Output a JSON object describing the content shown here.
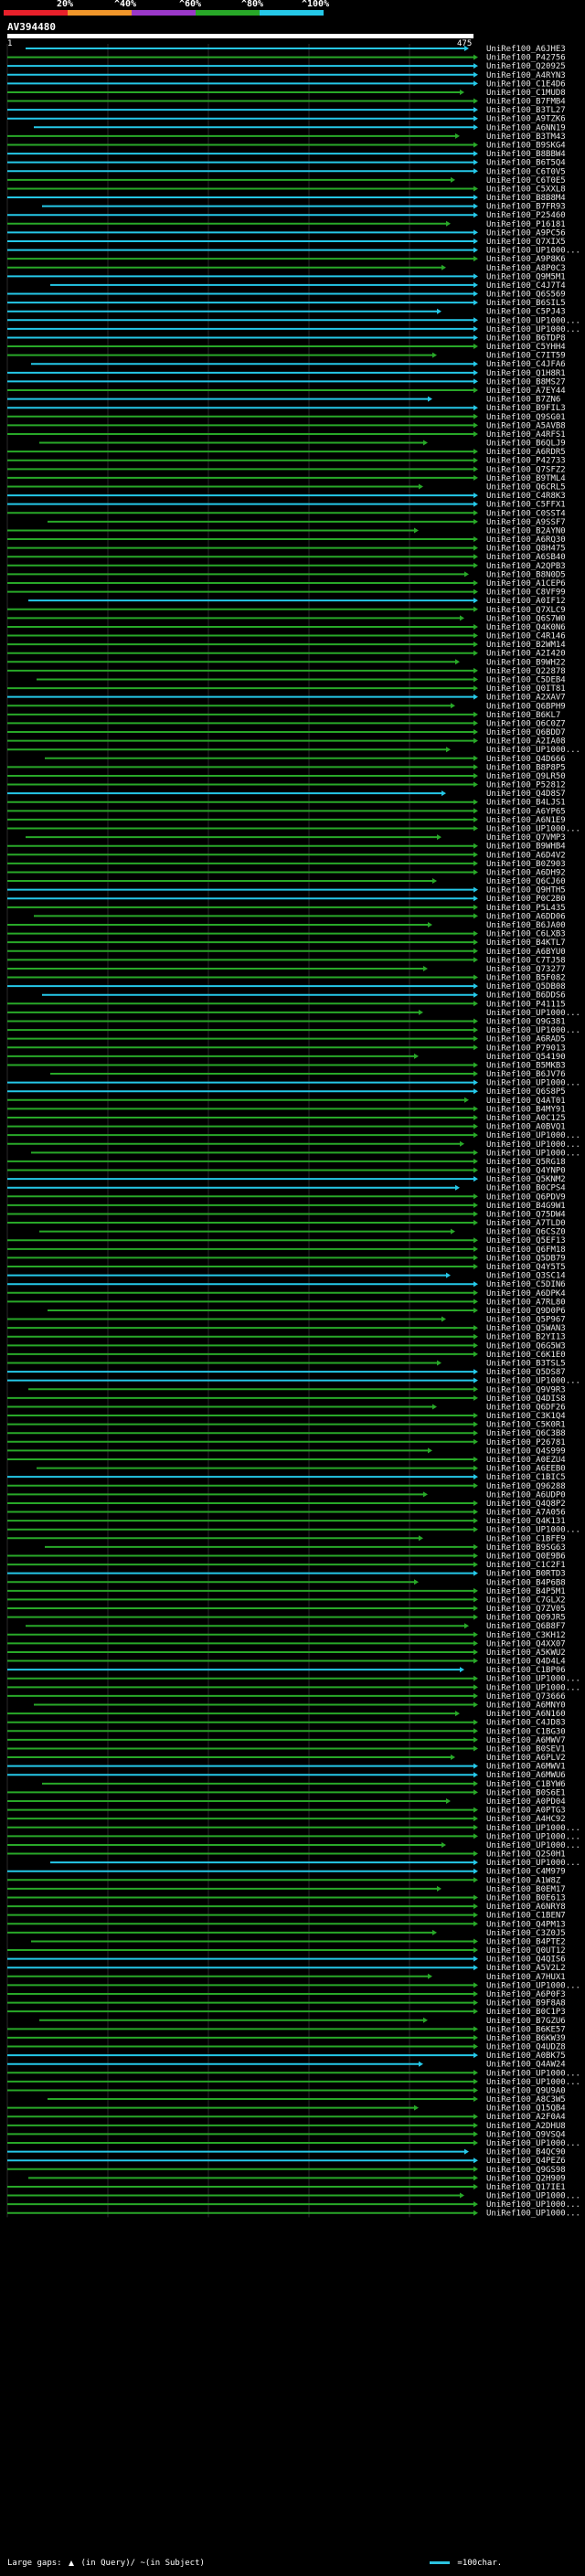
{
  "scale": {
    "labels": [
      "20%",
      "^40%",
      "^60%",
      "^80%",
      "^100%"
    ],
    "colors": [
      "#e8202a",
      "#f0962a",
      "#9a38c8",
      "#28a828",
      "#25c8e8"
    ]
  },
  "query": {
    "id": "AV394480",
    "start": "1",
    "end": "475"
  },
  "legend": {
    "left_prefix": "Large gaps:",
    "in_query": "(in Query)/",
    "in_subject": "~(in Subject)",
    "right_text": "=100char."
  },
  "hits": [
    "UniRef100_A6JHE3",
    "UniRef100_P42756",
    "UniRef100_Q20925",
    "UniRef100_A4RYN3",
    "UniRef100_C1E4D6",
    "UniRef100_C1MUD8",
    "UniRef100_B7FMB4",
    "UniRef100_B3TL27",
    "UniRef100_A9TZK6",
    "UniRef100_A6NN19",
    "UniRef100_B3TM43",
    "UniRef100_B9SKG4",
    "UniRef100_B8BBW4",
    "UniRef100_B6T5Q4",
    "UniRef100_C6T0V5",
    "UniRef100_C6T0E5",
    "UniRef100_C5XXL8",
    "UniRef100_B8B8M4",
    "UniRef100_B7FR93",
    "UniRef100_P25460",
    "UniRef100_P16181",
    "UniRef100_A9PC56",
    "UniRef100_Q7XIX5",
    "UniRef100_UP1000...",
    "UniRef100_A9P8K6",
    "UniRef100_A8P0C3",
    "UniRef100_Q9M5M1",
    "UniRef100_C4J7T4",
    "UniRef100_Q6S569",
    "UniRef100_B6SIL5",
    "UniRef100_C5PJ43",
    "UniRef100_UP1000...",
    "UniRef100_UP1000...",
    "UniRef100_B6TDP8",
    "UniRef100_C5YHH4",
    "UniRef100_C7IT59",
    "UniRef100_C4JFA6",
    "UniRef100_Q1H8R1",
    "UniRef100_B8MS27",
    "UniRef100_A7EY44",
    "UniRef100_B7ZN6",
    "UniRef100_B9FIL3",
    "UniRef100_Q9SG01",
    "UniRef100_A5AVB8",
    "UniRef100_A4RFS1",
    "UniRef100_B6QLJ9",
    "UniRef100_A6RDR5",
    "UniRef100_P42733",
    "UniRef100_Q7SFZ2",
    "UniRef100_B9TML4",
    "UniRef100_Q6CRL5",
    "UniRef100_C4R8K3",
    "UniRef100_C5FFX1",
    "UniRef100_C0SST4",
    "UniRef100_A9SSF7",
    "UniRef100_B2AYN0",
    "UniRef100_A6RQ30",
    "UniRef100_Q8H475",
    "UniRef100_A6SB40",
    "UniRef100_A2QPB3",
    "UniRef100_B8N0D5",
    "UniRef100_A1CEP6",
    "UniRef100_C8VF99",
    "UniRef100_A0IF12",
    "UniRef100_Q7XLC9",
    "UniRef100_Q6S7W0",
    "UniRef100_Q4K0N6",
    "UniRef100_C4R146",
    "UniRef100_B2WM14",
    "UniRef100_A2I420",
    "UniRef100_B9WH22",
    "UniRef100_Q22878",
    "UniRef100_C5DEB4",
    "UniRef100_Q0IT81",
    "UniRef100_A2XAV7",
    "UniRef100_Q6BPH9",
    "UniRef100_B6KL7",
    "UniRef100_Q6C0Z7",
    "UniRef100_Q6BDD7",
    "UniRef100_A2IA08",
    "UniRef100_UP1000...",
    "UniRef100_Q4D666",
    "UniRef100_B8P8P5",
    "UniRef100_Q9LR50",
    "UniRef100_P52812",
    "UniRef100_Q4D8S7",
    "UniRef100_B4LJS1",
    "UniRef100_A6YP65",
    "UniRef100_A6N1E9",
    "UniRef100_UP1000...",
    "UniRef100_Q7VMP3",
    "UniRef100_B9WHB4",
    "UniRef100_A6D4V2",
    "UniRef100_B0Z903",
    "UniRef100_A6DH92",
    "UniRef100_Q6CJ60",
    "UniRef100_Q9HTH5",
    "UniRef100_P0C2B0",
    "UniRef100_P5L435",
    "UniRef100_A6DD06",
    "UniRef100_B6JA00",
    "UniRef100_C6LXB3",
    "UniRef100_B4KTL7",
    "UniRef100_A6BYU0",
    "UniRef100_C7TJ58",
    "UniRef100_Q73277",
    "UniRef100_B5F082",
    "UniRef100_Q5DB08",
    "UniRef100_B6DDS6",
    "UniRef100_P41115",
    "UniRef100_UP1000...",
    "UniRef100_Q9G381",
    "UniRef100_UP1000...",
    "UniRef100_A6RAD5",
    "UniRef100_P79013",
    "UniRef100_Q54190",
    "UniRef100_B5MKB3",
    "UniRef100_B6JV76",
    "UniRef100_UP1000...",
    "UniRef100_Q6S8P5",
    "UniRef100_Q4AT01",
    "UniRef100_B4MY91",
    "UniRef100_A0C125",
    "UniRef100_A0BVQ1",
    "UniRef100_UP1000...",
    "UniRef100_UP1000...",
    "UniRef100_UP1000...",
    "UniRef100_Q5RG18",
    "UniRef100_Q4YNP0",
    "UniRef100_Q5KNM2",
    "UniRef100_B0CPS4",
    "UniRef100_Q6PDV9",
    "UniRef100_B4G9W1",
    "UniRef100_Q75DW4",
    "UniRef100_A7TLD0",
    "UniRef100_Q6CSZ0",
    "UniRef100_Q5EF13",
    "UniRef100_Q6FM18",
    "UniRef100_Q5DB79",
    "UniRef100_Q4Y5T5",
    "UniRef100_Q3SC14",
    "UniRef100_C5DIN6",
    "UniRef100_A6DPK4",
    "UniRef100_A7RL80",
    "UniRef100_Q9D0P6",
    "UniRef100_Q5P967",
    "UniRef100_Q5WAN3",
    "UniRef100_B2YI13",
    "UniRef100_Q6G5W3",
    "UniRef100_C6K1E0",
    "UniRef100_B3TSL5",
    "UniRef100_Q5DS87",
    "UniRef100_UP1000...",
    "UniRef100_Q9V9R3",
    "UniRef100_Q4DIS8",
    "UniRef100_Q6DF26",
    "UniRef100_C3K1Q4",
    "UniRef100_C5K0R1",
    "UniRef100_Q6C3B8",
    "UniRef100_P26781",
    "UniRef100_Q4S999",
    "UniRef100_A0EZU4",
    "UniRef100_A6EEB0",
    "UniRef100_C1BIC5",
    "UniRef100_Q96288",
    "UniRef100_A6UDP0",
    "UniRef100_Q4Q8P2",
    "UniRef100_A7A056",
    "UniRef100_Q4K131",
    "UniRef100_UP1000...",
    "UniRef100_C1BFE9",
    "UniRef100_B9SG63",
    "UniRef100_Q0E9B6",
    "UniRef100_C1C2F1",
    "UniRef100_B0RTD3",
    "UniRef100_B4P6B8",
    "UniRef100_B4P5M1",
    "UniRef100_C7GLX2",
    "UniRef100_Q7ZV05",
    "UniRef100_Q09JR5",
    "UniRef100_Q6B8F7",
    "UniRef100_C3KH12",
    "UniRef100_Q4XX07",
    "UniRef100_A5KWU2",
    "UniRef100_Q4D4L4",
    "UniRef100_C1BP06",
    "UniRef100_UP1000...",
    "UniRef100_UP1000...",
    "UniRef100_Q73666",
    "UniRef100_A6MNY0",
    "UniRef100_A6N160",
    "UniRef100_C4JD83",
    "UniRef100_C1BG30",
    "UniRef100_A6MWV7",
    "UniRef100_B0SEV1",
    "UniRef100_A6PLV2",
    "UniRef100_A6MWV1",
    "UniRef100_A6MWU6",
    "UniRef100_C1BYW6",
    "UniRef100_B0S6E1",
    "UniRef100_A0PD04",
    "UniRef100_A0PTG3",
    "UniRef100_A4HC92",
    "UniRef100_UP1000...",
    "UniRef100_UP1000...",
    "UniRef100_UP1000...",
    "UniRef100_Q2S0H1",
    "UniRef100_UP1000...",
    "UniRef100_C4M979",
    "UniRef100_A1W8Z",
    "UniRef100_B0EM17",
    "UniRef100_B0E613",
    "UniRef100_A6NRY8",
    "UniRef100_C1BEN7",
    "UniRef100_Q4PM13",
    "UniRef100_C3Z0J5",
    "UniRef100_B4PTE2",
    "UniRef100_Q0UT12",
    "UniRef100_Q4QIS6",
    "UniRef100_A5V2L2",
    "UniRef100_A7HUX1",
    "UniRef100_UP1000...",
    "UniRef100_A6P0F3",
    "UniRef100_B9F8A8",
    "UniRef100_B0C1P3",
    "UniRef100_B7GZU6",
    "UniRef100_B6KE57",
    "UniRef100_B6KW39",
    "UniRef100_Q4UDZ8",
    "UniRef100_A0BK75",
    "UniRef100_Q4AW24",
    "UniRef100_UP1000...",
    "UniRef100_UP1000...",
    "UniRef100_Q9U9A0",
    "UniRef100_A8C3W5",
    "UniRef100_Q15QB4",
    "UniRef100_A2F0A4",
    "UniRef100_A2DHU8",
    "UniRef100_Q9VSQ4",
    "UniRef100_UP1000...",
    "UniRef100_B4QC90",
    "UniRef100_Q4PEZ6",
    "UniRef100_Q9GS98",
    "UniRef100_Q2H909",
    "UniRef100_Q17IE1",
    "UniRef100_UP1000...",
    "UniRef100_UP1000...",
    "UniRef100_UP1000..."
  ]
}
